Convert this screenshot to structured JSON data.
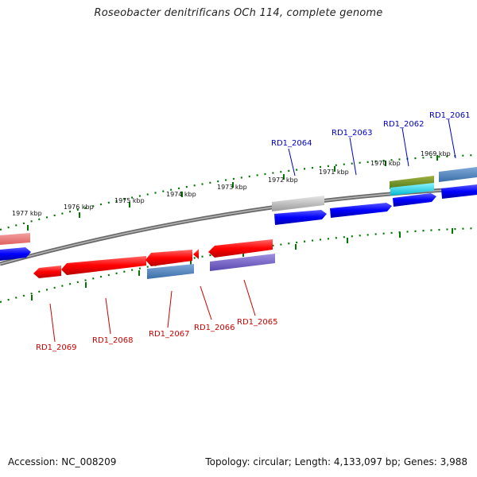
{
  "title": "Roseobacter denitrificans OCh 114, complete genome",
  "footer": {
    "accession": "Accession: NC_008209",
    "topology": "Topology: circular; Length: 4,133,097 bp; Genes: 3,988"
  },
  "tick_labels": [
    "1977 kbp",
    "1976 kbp",
    "1975 kbp",
    "1974 kbp",
    "1973 kbp",
    "1972 kbp",
    "1971 kbp",
    "1970 kbp",
    "1969 kbp"
  ],
  "gene_labels": {
    "forward": [
      "RD1_2064",
      "RD1_2063",
      "RD1_2062",
      "RD1_2061"
    ],
    "reverse": [
      "RD1_2069",
      "RD1_2068",
      "RD1_2067",
      "RD1_2066",
      "RD1_2065"
    ]
  },
  "colors": {
    "forward_label": "#0000cc",
    "reverse_label": "#cc0000",
    "tick": "#007700",
    "backbone": "#808080",
    "cds_forward": "#0000ee",
    "cds_reverse": "#ee0000"
  }
}
